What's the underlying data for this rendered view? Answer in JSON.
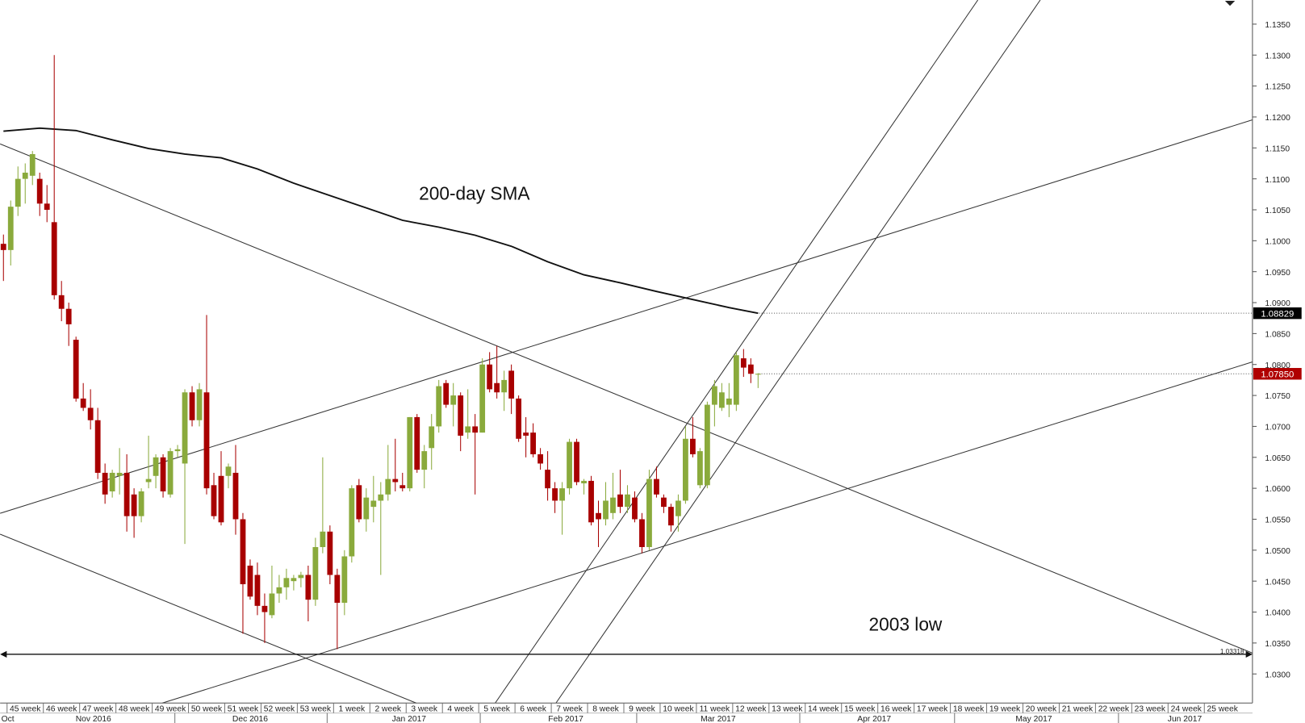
{
  "chart_data": {
    "type": "candlestick",
    "open": [
      1.0995,
      1.0985,
      1.1055,
      1.11,
      1.1105,
      1.11,
      1.106,
      1.103,
      1.0912,
      1.089,
      1.084,
      1.0745,
      1.073,
      1.071,
      1.0625,
      1.0595,
      1.062,
      1.0625,
      1.059,
      1.0555,
      1.061,
      1.062,
      1.065,
      1.059,
      1.066,
      1.064,
      1.0755,
      1.071,
      1.0755,
      1.0605,
      1.062,
      1.062,
      1.0625,
      1.055,
      1.0475,
      1.046,
      1.041,
      1.0395,
      1.043,
      1.044,
      1.045,
      1.0455,
      1.046,
      1.042,
      1.0505,
      1.053,
      1.046,
      1.0415,
      1.049,
      1.0605,
      1.055,
      1.057,
      1.058,
      1.059,
      1.0615,
      1.0605,
      1.06,
      1.0715,
      1.063,
      1.0665,
      1.07,
      1.077,
      1.0735,
      1.075,
      1.069,
      1.07,
      1.069,
      1.08,
      1.077,
      1.0755,
      1.079,
      1.0745,
      1.069,
      1.069,
      1.0655,
      1.063,
      1.06,
      1.058,
      1.06,
      1.0675,
      1.0608,
      1.0612,
      1.056,
      1.055,
      1.056,
      1.059,
      1.057,
      1.0585,
      1.055,
      1.0505,
      1.0615,
      1.0585,
      1.057,
      1.0555,
      1.058,
      1.068,
      1.0605,
      1.0605,
      1.0735,
      1.073,
      1.0735,
      1.0735,
      1.081,
      1.08,
      1.0784
    ],
    "high": [
      1.101,
      1.1065,
      1.112,
      1.1125,
      1.1145,
      1.111,
      1.109,
      1.13,
      1.0935,
      1.09,
      1.0845,
      1.077,
      1.076,
      1.073,
      1.064,
      1.063,
      1.0665,
      1.0655,
      1.06,
      1.06,
      1.0685,
      1.0655,
      1.0655,
      1.0665,
      1.067,
      1.076,
      1.0765,
      1.077,
      1.088,
      1.0625,
      1.066,
      1.064,
      1.067,
      1.056,
      1.0485,
      1.048,
      1.043,
      1.0475,
      1.046,
      1.047,
      1.046,
      1.0465,
      1.0475,
      1.052,
      1.065,
      1.054,
      1.047,
      1.05,
      1.0605,
      1.0615,
      1.06,
      1.062,
      1.061,
      1.067,
      1.068,
      1.0625,
      1.0715,
      1.072,
      1.067,
      1.072,
      1.0775,
      1.0775,
      1.077,
      1.0755,
      1.076,
      1.072,
      1.081,
      1.082,
      1.083,
      1.079,
      1.08,
      1.075,
      1.0715,
      1.0705,
      1.0665,
      1.066,
      1.061,
      1.061,
      1.068,
      1.068,
      1.0615,
      1.062,
      1.058,
      1.061,
      1.0625,
      1.063,
      1.0605,
      1.0595,
      1.056,
      1.063,
      1.0635,
      1.059,
      1.0575,
      1.059,
      1.07,
      1.0715,
      1.0665,
      1.074,
      1.0775,
      1.077,
      1.077,
      1.082,
      1.0825,
      1.081,
      1.0786
    ],
    "low": [
      1.0935,
      1.096,
      1.104,
      1.106,
      1.109,
      1.104,
      1.103,
      1.0905,
      1.087,
      1.083,
      1.074,
      1.0725,
      1.0695,
      1.0615,
      1.0575,
      1.0585,
      1.059,
      1.053,
      1.052,
      1.0545,
      1.06,
      1.06,
      1.0585,
      1.0585,
      1.065,
      1.051,
      1.07,
      1.07,
      1.059,
      1.055,
      1.054,
      1.06,
      1.0525,
      1.0365,
      1.042,
      1.0395,
      1.035,
      1.039,
      1.0415,
      1.042,
      1.0435,
      1.044,
      1.0385,
      1.041,
      1.0495,
      1.0445,
      1.034,
      1.0395,
      1.048,
      1.0545,
      1.053,
      1.0545,
      1.046,
      1.058,
      1.0595,
      1.0595,
      1.0595,
      1.0625,
      1.06,
      1.063,
      1.069,
      1.073,
      1.07,
      1.066,
      1.068,
      1.059,
      1.069,
      1.0755,
      1.0745,
      1.0725,
      1.072,
      1.0675,
      1.065,
      1.065,
      1.063,
      1.058,
      1.056,
      1.0525,
      1.059,
      1.0605,
      1.059,
      1.054,
      1.0505,
      1.054,
      1.055,
      1.056,
      1.056,
      1.0545,
      1.0495,
      1.05,
      1.0585,
      1.056,
      1.053,
      1.053,
      1.0575,
      1.065,
      1.06,
      1.06,
      1.07,
      1.0725,
      1.0715,
      1.0725,
      1.078,
      1.077,
      1.0762
    ],
    "close": [
      1.0985,
      1.1055,
      1.11,
      1.111,
      1.114,
      1.106,
      1.105,
      1.0912,
      1.089,
      1.0865,
      1.0745,
      1.073,
      1.071,
      1.0625,
      1.059,
      1.0625,
      1.0625,
      1.0555,
      1.0555,
      1.0595,
      1.0615,
      1.065,
      1.0595,
      1.066,
      1.0663,
      1.0755,
      1.071,
      1.076,
      1.06,
      1.0555,
      1.0545,
      1.0635,
      1.055,
      1.0445,
      1.0425,
      1.041,
      1.04,
      1.043,
      1.044,
      1.0455,
      1.0455,
      1.046,
      1.042,
      1.0505,
      1.053,
      1.046,
      1.0415,
      1.049,
      1.06,
      1.055,
      1.0585,
      1.058,
      1.059,
      1.0615,
      1.061,
      1.06,
      1.0715,
      1.063,
      1.066,
      1.07,
      1.0765,
      1.0735,
      1.075,
      1.0685,
      1.07,
      1.069,
      1.08,
      1.076,
      1.0755,
      1.0775,
      1.0745,
      1.068,
      1.0685,
      1.0655,
      1.064,
      1.06,
      1.058,
      1.06,
      1.0675,
      1.061,
      1.0612,
      1.0545,
      1.055,
      1.058,
      1.0585,
      1.057,
      1.059,
      1.055,
      1.0505,
      1.0615,
      1.059,
      1.057,
      1.054,
      1.058,
      1.068,
      1.0655,
      1.066,
      1.0735,
      1.0765,
      1.0755,
      1.0745,
      1.0815,
      1.0795,
      1.0785,
      1.0785
    ],
    "up_color": "#8aaa3c",
    "down_color": "#a80000",
    "ylim": [
      1.0253,
      1.1389
    ],
    "yticks": [
      {
        "value": 1.03,
        "label": "1.0300"
      },
      {
        "value": 1.035,
        "label": "1.0350"
      },
      {
        "value": 1.04,
        "label": "1.0400"
      },
      {
        "value": 1.045,
        "label": "1.0450"
      },
      {
        "value": 1.05,
        "label": "1.0500"
      },
      {
        "value": 1.055,
        "label": "1.0550"
      },
      {
        "value": 1.06,
        "label": "1.0600"
      },
      {
        "value": 1.065,
        "label": "1.0650"
      },
      {
        "value": 1.07,
        "label": "1.0700"
      },
      {
        "value": 1.075,
        "label": "1.0750"
      },
      {
        "value": 1.08,
        "label": "1.0800"
      },
      {
        "value": 1.085,
        "label": "1.0850"
      },
      {
        "value": 1.09,
        "label": "1.0900"
      },
      {
        "value": 1.095,
        "label": "1.0950"
      },
      {
        "value": 1.1,
        "label": "1.1000"
      },
      {
        "value": 1.105,
        "label": "1.1050"
      },
      {
        "value": 1.11,
        "label": "1.1100"
      },
      {
        "value": 1.115,
        "label": "1.1150"
      },
      {
        "value": 1.12,
        "label": "1.1200"
      },
      {
        "value": 1.125,
        "label": "1.1250"
      },
      {
        "value": 1.13,
        "label": "1.1300"
      },
      {
        "value": 1.135,
        "label": "1.1350"
      }
    ],
    "week_labels": [
      "45 week",
      "46 week",
      "47 week",
      "48 week",
      "49 week",
      "50 week",
      "51 week",
      "52 week",
      "53 week",
      "1 week",
      "2 week",
      "3 week",
      "4 week",
      "5 week",
      "6 week",
      "7 week",
      "8 week",
      "9 week",
      "10 week",
      "11 week",
      "12 week",
      "13 week",
      "14 week",
      "15 week",
      "16 week",
      "17 week",
      "18 week",
      "19 week",
      "20 week",
      "21 week",
      "22 week",
      "23 week",
      "24 week",
      "25 week"
    ],
    "month_ticks": [
      {
        "value": 0.6,
        "label": "Oct"
      },
      {
        "value": 12.4,
        "label": "Nov 2016"
      },
      {
        "value": 34,
        "label": "Dec 2016"
      },
      {
        "value": 55.9,
        "label": "Jan 2017"
      },
      {
        "value": 77.5,
        "label": "Feb 2017"
      },
      {
        "value": 98.5,
        "label": "Mar 2017"
      },
      {
        "value": 120,
        "label": "Apr 2017"
      },
      {
        "value": 142,
        "label": "May 2017"
      },
      {
        "value": 162.8,
        "label": "Jun 2017"
      }
    ],
    "sma": {
      "x": [
        0,
        5,
        10,
        15,
        20,
        25,
        30,
        35,
        40,
        45,
        50,
        55,
        60,
        65,
        70,
        75,
        80,
        85,
        90,
        95,
        100,
        104
      ],
      "values": [
        1.1177,
        1.1182,
        1.1178,
        1.1163,
        1.1149,
        1.114,
        1.1134,
        1.1116,
        1.1093,
        1.1073,
        1.1053,
        1.1033,
        1.1022,
        1.1009,
        1.0991,
        1.0966,
        1.0945,
        1.0932,
        1.0918,
        1.0905,
        1.0892,
        1.08829
      ],
      "color": "#111111"
    },
    "price_labels": [
      {
        "value": 1.08829,
        "label": "1.08829",
        "color": "#000000"
      },
      {
        "value": 1.0785,
        "label": "1.07850",
        "color": "#b00000"
      }
    ],
    "support": {
      "value": 1.03318,
      "label": "1.03318"
    },
    "annotations": [
      "200-day SMA",
      "2003 low"
    ]
  }
}
